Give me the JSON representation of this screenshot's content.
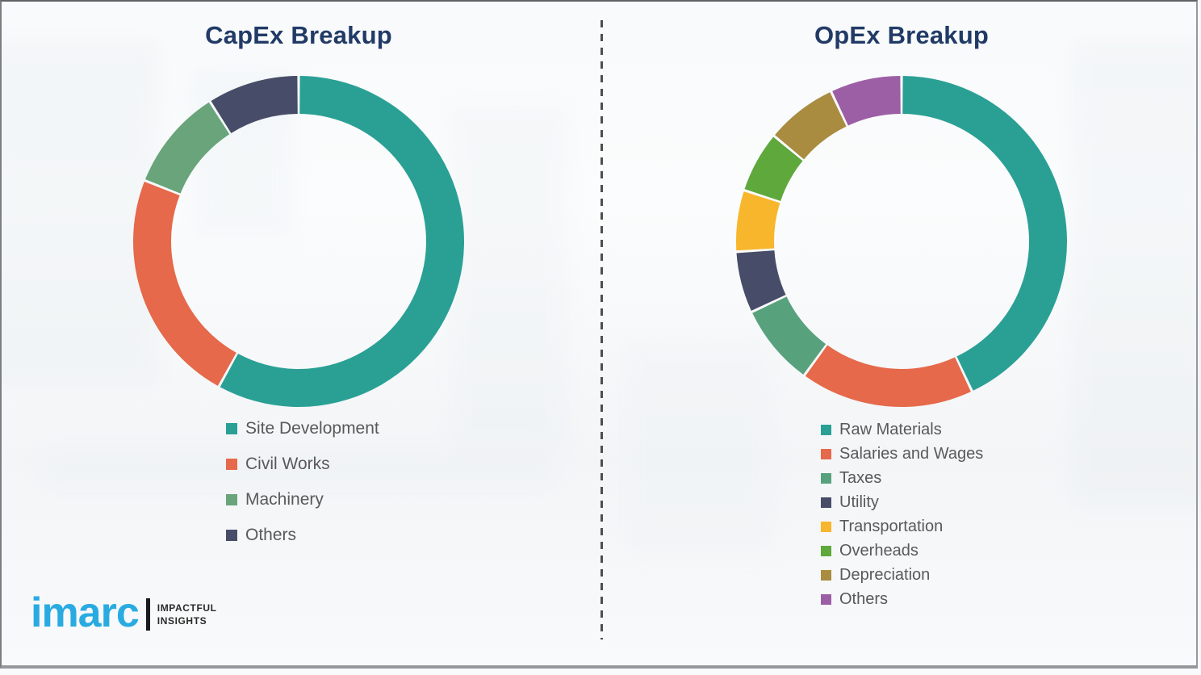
{
  "page": {
    "background_color": "#fbfcfd",
    "divider_color": "#4e4e4e",
    "title_color": "#213a66",
    "legend_text_color": "#595959",
    "border_color": "#8f9498"
  },
  "chart_data": [
    {
      "type": "pie",
      "subtype": "donut",
      "title": "CapEx Breakup",
      "labels": [
        "Site Development",
        "Civil Works",
        "Machinery",
        "Others"
      ],
      "values": [
        58,
        23,
        10,
        9
      ],
      "unit": "percent-estimated",
      "colors": [
        "#2aa095",
        "#e5694a",
        "#69a47b",
        "#474d68"
      ],
      "start_angle_deg": 0,
      "direction": "clockwise",
      "legend_position": "below-left",
      "data_labels_shown": false
    },
    {
      "type": "pie",
      "subtype": "donut",
      "title": "OpEx Breakup",
      "labels": [
        "Raw Materials",
        "Salaries and Wages",
        "Taxes",
        "Utility",
        "Transportation",
        "Overheads",
        "Depreciation",
        "Others"
      ],
      "values": [
        43,
        17,
        8,
        6,
        6,
        6,
        7,
        7
      ],
      "unit": "percent-estimated",
      "colors": [
        "#2aa095",
        "#e5694a",
        "#57a27d",
        "#474d68",
        "#f8b62d",
        "#5fa83c",
        "#a98c40",
        "#9c5fa5"
      ],
      "start_angle_deg": 0,
      "direction": "clockwise",
      "legend_position": "below-left",
      "data_labels_shown": false
    }
  ],
  "logo": {
    "brand": "imarc",
    "tagline_line1": "IMPACTFUL",
    "tagline_line2": "INSIGHTS",
    "brand_color": "#29abe2"
  }
}
